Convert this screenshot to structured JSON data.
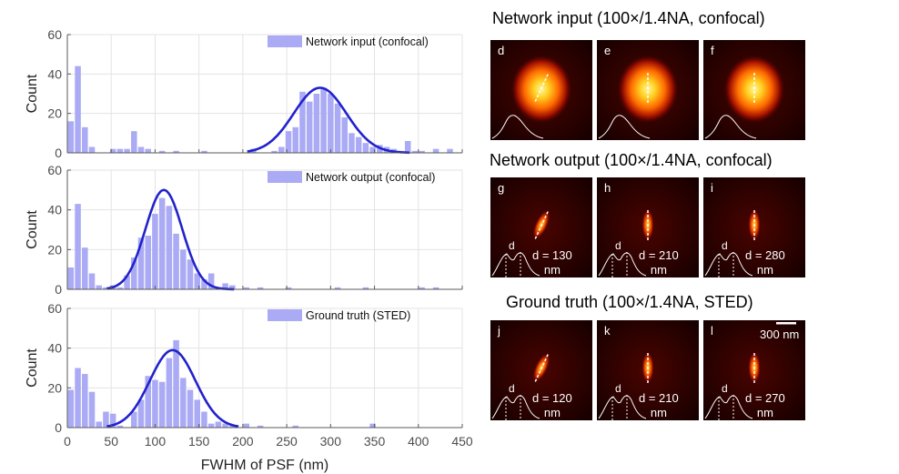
{
  "chart_data": [
    {
      "type": "bar",
      "panel": "top",
      "ylabel": "Count",
      "xlim": [
        0,
        450
      ],
      "ylim": [
        0,
        60
      ],
      "yticks": [
        0,
        20,
        40,
        60
      ],
      "bin_width": 8,
      "legend": "Network input (confocal)",
      "legend_position": "top-right",
      "bins": [
        {
          "x": 0,
          "y": 16
        },
        {
          "x": 8,
          "y": 44
        },
        {
          "x": 16,
          "y": 13
        },
        {
          "x": 24,
          "y": 3
        },
        {
          "x": 48,
          "y": 2
        },
        {
          "x": 56,
          "y": 2
        },
        {
          "x": 64,
          "y": 2
        },
        {
          "x": 72,
          "y": 11
        },
        {
          "x": 80,
          "y": 3
        },
        {
          "x": 88,
          "y": 2
        },
        {
          "x": 104,
          "y": 1
        },
        {
          "x": 120,
          "y": 1
        },
        {
          "x": 152,
          "y": 1
        },
        {
          "x": 208,
          "y": 2
        },
        {
          "x": 232,
          "y": 1
        },
        {
          "x": 240,
          "y": 3
        },
        {
          "x": 248,
          "y": 11
        },
        {
          "x": 256,
          "y": 13
        },
        {
          "x": 264,
          "y": 31
        },
        {
          "x": 272,
          "y": 26
        },
        {
          "x": 280,
          "y": 30
        },
        {
          "x": 288,
          "y": 33
        },
        {
          "x": 296,
          "y": 30
        },
        {
          "x": 304,
          "y": 25
        },
        {
          "x": 312,
          "y": 18
        },
        {
          "x": 320,
          "y": 10
        },
        {
          "x": 328,
          "y": 8
        },
        {
          "x": 336,
          "y": 5
        },
        {
          "x": 344,
          "y": 3
        },
        {
          "x": 352,
          "y": 4
        },
        {
          "x": 360,
          "y": 3
        },
        {
          "x": 368,
          "y": 2
        },
        {
          "x": 376,
          "y": 1
        },
        {
          "x": 384,
          "y": 6
        },
        {
          "x": 392,
          "y": 1
        },
        {
          "x": 400,
          "y": 1
        },
        {
          "x": 416,
          "y": 2
        },
        {
          "x": 432,
          "y": 2
        }
      ],
      "fit": {
        "mean": 288,
        "sigma": 30,
        "amplitude": 33,
        "xmin": 205,
        "xmax": 390
      }
    },
    {
      "type": "bar",
      "panel": "middle",
      "ylabel": "Count",
      "xlim": [
        0,
        450
      ],
      "ylim": [
        0,
        60
      ],
      "yticks": [
        0,
        20,
        40,
        60
      ],
      "bin_width": 8,
      "legend": "Network output (confocal)",
      "legend_position": "top-right",
      "bins": [
        {
          "x": 0,
          "y": 11
        },
        {
          "x": 8,
          "y": 43
        },
        {
          "x": 16,
          "y": 21
        },
        {
          "x": 24,
          "y": 8
        },
        {
          "x": 32,
          "y": 2
        },
        {
          "x": 40,
          "y": 1
        },
        {
          "x": 48,
          "y": 2
        },
        {
          "x": 56,
          "y": 1
        },
        {
          "x": 64,
          "y": 7
        },
        {
          "x": 72,
          "y": 16
        },
        {
          "x": 80,
          "y": 26
        },
        {
          "x": 88,
          "y": 27
        },
        {
          "x": 96,
          "y": 38
        },
        {
          "x": 104,
          "y": 46
        },
        {
          "x": 112,
          "y": 42
        },
        {
          "x": 120,
          "y": 28
        },
        {
          "x": 128,
          "y": 20
        },
        {
          "x": 136,
          "y": 15
        },
        {
          "x": 144,
          "y": 8
        },
        {
          "x": 152,
          "y": 5
        },
        {
          "x": 160,
          "y": 8
        },
        {
          "x": 168,
          "y": 1
        },
        {
          "x": 176,
          "y": 3
        },
        {
          "x": 184,
          "y": 2
        },
        {
          "x": 200,
          "y": 1
        },
        {
          "x": 216,
          "y": 1
        },
        {
          "x": 248,
          "y": 1
        },
        {
          "x": 304,
          "y": 1
        },
        {
          "x": 336,
          "y": 1
        },
        {
          "x": 400,
          "y": 1
        },
        {
          "x": 416,
          "y": 1
        }
      ],
      "fit": {
        "mean": 110,
        "sigma": 21,
        "amplitude": 50,
        "xmin": 45,
        "xmax": 190
      }
    },
    {
      "type": "bar",
      "panel": "bottom",
      "ylabel": "Count",
      "xlabel": "FWHM of PSF (nm)",
      "xlim": [
        0,
        450
      ],
      "xticks": [
        0,
        50,
        100,
        150,
        200,
        250,
        300,
        350,
        400,
        450
      ],
      "ylim": [
        0,
        60
      ],
      "yticks": [
        0,
        20,
        40,
        60
      ],
      "bin_width": 8,
      "legend": "Ground truth (STED)",
      "legend_position": "top-right",
      "bins": [
        {
          "x": 0,
          "y": 19
        },
        {
          "x": 8,
          "y": 30
        },
        {
          "x": 16,
          "y": 27
        },
        {
          "x": 24,
          "y": 18
        },
        {
          "x": 32,
          "y": 3
        },
        {
          "x": 40,
          "y": 8
        },
        {
          "x": 48,
          "y": 7
        },
        {
          "x": 56,
          "y": 1
        },
        {
          "x": 72,
          "y": 8
        },
        {
          "x": 80,
          "y": 14
        },
        {
          "x": 88,
          "y": 26
        },
        {
          "x": 96,
          "y": 24
        },
        {
          "x": 104,
          "y": 23
        },
        {
          "x": 112,
          "y": 35
        },
        {
          "x": 120,
          "y": 44
        },
        {
          "x": 128,
          "y": 25
        },
        {
          "x": 136,
          "y": 19
        },
        {
          "x": 144,
          "y": 14
        },
        {
          "x": 152,
          "y": 8
        },
        {
          "x": 160,
          "y": 2
        },
        {
          "x": 168,
          "y": 3
        },
        {
          "x": 176,
          "y": 2
        },
        {
          "x": 184,
          "y": 1
        },
        {
          "x": 200,
          "y": 2
        },
        {
          "x": 216,
          "y": 1
        },
        {
          "x": 256,
          "y": 1
        },
        {
          "x": 344,
          "y": 2
        }
      ],
      "fit": {
        "mean": 120,
        "sigma": 26,
        "amplitude": 39,
        "xmin": 45,
        "xmax": 195
      }
    }
  ],
  "colors": {
    "bar_fill": "#aaaaf5",
    "fit_line": "#2222cc",
    "grid": "#e3e3e3",
    "axis": "#5a5a5a",
    "tick_label": "#4d4d4d"
  },
  "micrographs": {
    "rows": [
      {
        "title": "Network input (100×/1.4NA, confocal)",
        "tiles": [
          {
            "letter": "d",
            "d_label": "",
            "nm_label": ""
          },
          {
            "letter": "e",
            "d_label": "",
            "nm_label": ""
          },
          {
            "letter": "f",
            "d_label": "",
            "nm_label": ""
          }
        ]
      },
      {
        "title": "Network output (100×/1.4NA, confocal)",
        "tiles": [
          {
            "letter": "g",
            "d_label": "d = 130",
            "nm_label": "nm",
            "d_marker": "d"
          },
          {
            "letter": "h",
            "d_label": "d = 210",
            "nm_label": "nm",
            "d_marker": "d"
          },
          {
            "letter": "i",
            "d_label": "d = 280",
            "nm_label": "nm",
            "d_marker": "d"
          }
        ]
      },
      {
        "title": "Ground truth (100×/1.4NA, STED)",
        "tiles": [
          {
            "letter": "j",
            "d_label": "d = 120",
            "nm_label": "nm",
            "d_marker": "d"
          },
          {
            "letter": "k",
            "d_label": "d = 210",
            "nm_label": "nm",
            "d_marker": "d"
          },
          {
            "letter": "l",
            "d_label": "d = 270",
            "nm_label": "nm",
            "d_marker": "d"
          }
        ]
      }
    ],
    "scale_bar_label": "300 nm"
  }
}
